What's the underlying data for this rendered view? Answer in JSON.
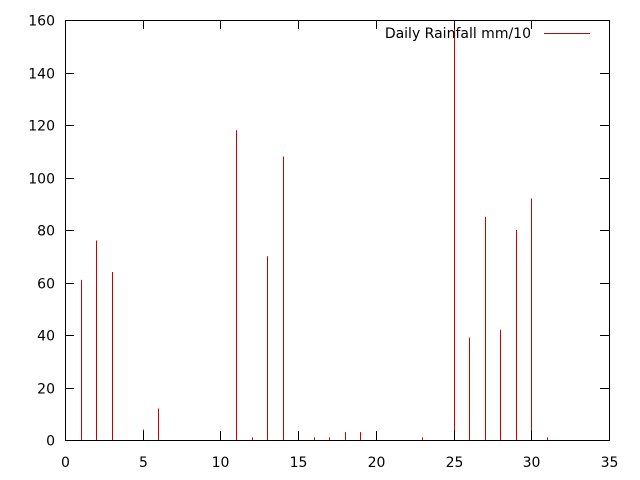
{
  "chart_data": {
    "type": "bar",
    "style": "impulses",
    "x": [
      1,
      2,
      3,
      5,
      6,
      11,
      12,
      13,
      14,
      15,
      16,
      17,
      18,
      19,
      20,
      23,
      25,
      26,
      27,
      28,
      29,
      30,
      31
    ],
    "series": [
      {
        "name": "Daily Rainfall mm/10",
        "color": "#cc0000",
        "values": [
          61,
          76,
          64,
          4,
          12,
          118,
          1,
          70,
          108,
          1,
          1,
          1,
          3,
          3,
          1,
          1,
          160,
          39,
          85,
          42,
          80,
          92,
          1
        ]
      }
    ],
    "xlim": [
      0,
      35
    ],
    "ylim": [
      0,
      160
    ],
    "xticks": [
      "0",
      "5",
      "10",
      "15",
      "20",
      "25",
      "30",
      "35"
    ],
    "yticks": [
      "0",
      "20",
      "40",
      "60",
      "80",
      "100",
      "120",
      "140",
      "160"
    ],
    "title": "",
    "xlabel": "",
    "ylabel": "",
    "grid": false,
    "legend_position": "top-right"
  }
}
